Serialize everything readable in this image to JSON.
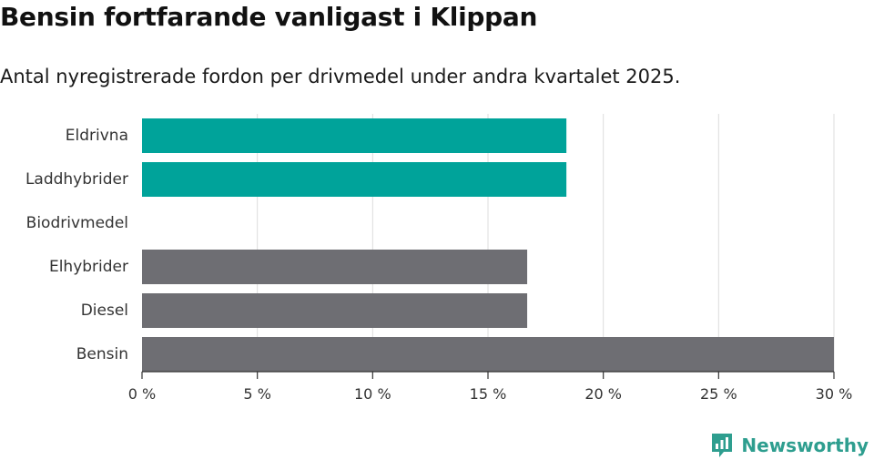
{
  "title": "Bensin fortfarande vanligast i Klippan",
  "subtitle": "Antal nyregistrerade fordon per drivmedel under andra kvartalet 2025.",
  "brand": {
    "name": "Newsworthy",
    "color": "#2e9e8f"
  },
  "colors": {
    "highlight": "#00a39a",
    "default": "#6e6e73",
    "grid": "#dcdcdc",
    "axis": "#333333"
  },
  "chart_data": {
    "type": "bar",
    "orientation": "horizontal",
    "title": "Bensin fortfarande vanligast i Klippan",
    "subtitle": "Antal nyregistrerade fordon per drivmedel under andra kvartalet 2025.",
    "categories": [
      "Eldrivna",
      "Laddhybrider",
      "Biodrivmedel",
      "Elhybrider",
      "Diesel",
      "Bensin"
    ],
    "values": [
      18.4,
      18.4,
      0,
      16.7,
      16.7,
      30.0
    ],
    "highlighted": [
      true,
      true,
      false,
      false,
      false,
      false
    ],
    "unit": "%",
    "xlim": [
      0,
      30
    ],
    "xticks": [
      0,
      5,
      10,
      15,
      20,
      25,
      30
    ],
    "xtick_labels": [
      "0 %",
      "5 %",
      "10 %",
      "15 %",
      "20 %",
      "25 %",
      "30 %"
    ],
    "xlabel": "",
    "ylabel": "",
    "grid": true
  }
}
